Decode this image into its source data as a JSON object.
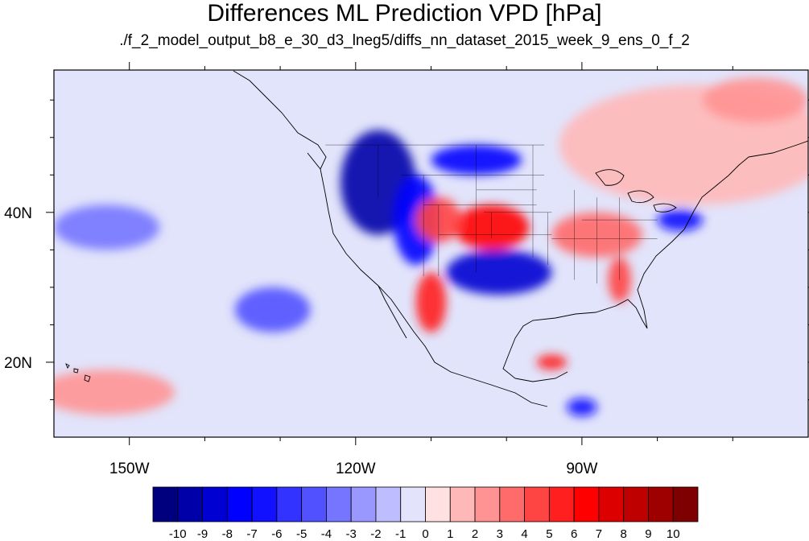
{
  "title": "Differences ML Prediction VPD [hPa]",
  "subtitle": "./f_2_model_output_b8_e_30_d3_lneg5/diffs_nn_dataset_2015_week_9_ens_0_f_2",
  "map": {
    "projection": "cylindrical-equidistant",
    "lon_range": [
      -160,
      -60
    ],
    "lat_range": [
      10,
      59
    ],
    "lon_ticks": [
      {
        "value": -150,
        "label": "150W"
      },
      {
        "value": -120,
        "label": "120W"
      },
      {
        "value": -90,
        "label": "90W"
      }
    ],
    "lat_ticks": [
      {
        "value": 40,
        "label": "40N"
      },
      {
        "value": 20,
        "label": "20N"
      }
    ],
    "background_color": "#e2e4fb",
    "patches": [
      {
        "lon": -117,
        "lat": 44,
        "rx": 5,
        "ry": 7,
        "value": -9
      },
      {
        "lon": -112,
        "lat": 39,
        "rx": 3,
        "ry": 6,
        "value": -7
      },
      {
        "lon": -101,
        "lat": 32,
        "rx": 7,
        "ry": 3,
        "value": -8
      },
      {
        "lon": -104,
        "lat": 47,
        "rx": 6,
        "ry": 2,
        "value": -7
      },
      {
        "lon": -77,
        "lat": 39,
        "rx": 3,
        "ry": 1.5,
        "value": -6
      },
      {
        "lon": -131,
        "lat": 27,
        "rx": 5,
        "ry": 3,
        "value": -4
      },
      {
        "lon": -153,
        "lat": 38,
        "rx": 7,
        "ry": 3,
        "value": -3
      },
      {
        "lon": -102,
        "lat": 38,
        "rx": 5,
        "ry": 3,
        "value": 6
      },
      {
        "lon": -109,
        "lat": 39,
        "rx": 3,
        "ry": 3,
        "value": 4
      },
      {
        "lon": -88,
        "lat": 37,
        "rx": 6,
        "ry": 3,
        "value": 3
      },
      {
        "lon": -85,
        "lat": 31,
        "rx": 1.5,
        "ry": 3,
        "value": 4
      },
      {
        "lon": -110,
        "lat": 28,
        "rx": 2,
        "ry": 4,
        "value": 5
      },
      {
        "lon": -94,
        "lat": 20,
        "rx": 2,
        "ry": 1,
        "value": 5
      },
      {
        "lon": -90,
        "lat": 14,
        "rx": 2,
        "ry": 1.2,
        "value": -6
      },
      {
        "lon": -75,
        "lat": 49,
        "rx": 18,
        "ry": 8,
        "value": 1
      },
      {
        "lon": -153,
        "lat": 16,
        "rx": 9,
        "ry": 3,
        "value": 2
      },
      {
        "lon": -67,
        "lat": 55,
        "rx": 7,
        "ry": 3,
        "value": 2
      }
    ]
  },
  "colorbar": {
    "colors": [
      "#00007f",
      "#0000a9",
      "#0000d2",
      "#0000ff",
      "#1111ff",
      "#3333ff",
      "#5151ff",
      "#7575ff",
      "#9898ff",
      "#bdbdff",
      "#e3e3fb",
      "#ffe1e1",
      "#ffb8b8",
      "#ff9393",
      "#ff6a6a",
      "#ff4444",
      "#ff1f1f",
      "#ff0000",
      "#dd0000",
      "#be0000",
      "#9e0000",
      "#7f0000"
    ],
    "labels": [
      "-10",
      "-9",
      "-8",
      "-7",
      "-6",
      "-5",
      "-4",
      "-3",
      "-2",
      "-1",
      "0",
      "1",
      "2",
      "3",
      "4",
      "5",
      "6",
      "7",
      "8",
      "9",
      "10"
    ]
  }
}
